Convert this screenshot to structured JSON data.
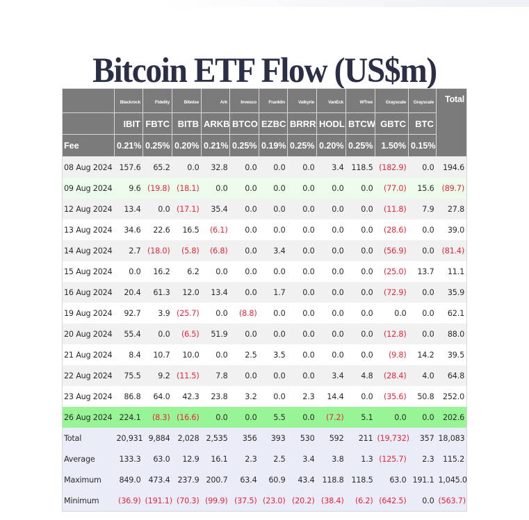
{
  "page": {
    "title": "Bitcoin ETF Flow (US$m)"
  },
  "colors": {
    "header_bg": "#7b7b7b",
    "negative_text": "#e8233a",
    "highlight_row": "#98f596",
    "light_green_row": "#ecfbec",
    "summary_row_bg": "#eaedf7"
  },
  "table": {
    "total_header": "Total",
    "fee_label": "Fee",
    "issuers": [
      "Blackrock",
      "Fidelity",
      "Bitwise",
      "Ark",
      "Invesco",
      "Franklin",
      "Valkyrie",
      "VanEck",
      "WTree",
      "Grayscale",
      "Grayscale"
    ],
    "tickers": [
      "IBIT",
      "FBTC",
      "BITB",
      "ARKB",
      "BTCO",
      "EZBC",
      "BRRR",
      "HODL",
      "BTCW",
      "GBTC",
      "BTC"
    ],
    "fees": [
      "0.21%",
      "0.25%",
      "0.20%",
      "0.21%",
      "0.25%",
      "0.19%",
      "0.25%",
      "0.20%",
      "0.25%",
      "1.50%",
      "0.15%"
    ],
    "rows": [
      {
        "date": "08 Aug 2024",
        "style": "grey",
        "values": [
          "157.6",
          "65.2",
          "0.0",
          "32.8",
          "0.0",
          "0.0",
          "0.0",
          "3.4",
          "118.5",
          "(182.9)",
          "0.0",
          "194.6"
        ]
      },
      {
        "date": "09 Aug 2024",
        "style": "lightgreen",
        "values": [
          "9.6",
          "(19.8)",
          "(18.1)",
          "0.0",
          "0.0",
          "0.0",
          "0.0",
          "0.0",
          "0.0",
          "(77.0)",
          "15.6",
          "(89.7)"
        ]
      },
      {
        "date": "12 Aug 2024",
        "style": "grey",
        "values": [
          "13.4",
          "0.0",
          "(17.1)",
          "35.4",
          "0.0",
          "0.0",
          "0.0",
          "0.0",
          "0.0",
          "(11.8)",
          "7.9",
          "27.8"
        ]
      },
      {
        "date": "13 Aug 2024",
        "style": "white",
        "values": [
          "34.6",
          "22.6",
          "16.5",
          "(6.1)",
          "0.0",
          "0.0",
          "0.0",
          "0.0",
          "0.0",
          "(28.6)",
          "0.0",
          "39.0"
        ]
      },
      {
        "date": "14 Aug 2024",
        "style": "grey",
        "values": [
          "2.7",
          "(18.0)",
          "(5.8)",
          "(6.8)",
          "0.0",
          "3.4",
          "0.0",
          "0.0",
          "0.0",
          "(56.9)",
          "0.0",
          "(81.4)"
        ]
      },
      {
        "date": "15 Aug 2024",
        "style": "white",
        "values": [
          "0.0",
          "16.2",
          "6.2",
          "0.0",
          "0.0",
          "0.0",
          "0.0",
          "0.0",
          "0.0",
          "(25.0)",
          "13.7",
          "11.1"
        ]
      },
      {
        "date": "16 Aug 2024",
        "style": "grey",
        "values": [
          "20.4",
          "61.3",
          "12.0",
          "13.4",
          "0.0",
          "1.7",
          "0.0",
          "0.0",
          "0.0",
          "(72.9)",
          "0.0",
          "35.9"
        ]
      },
      {
        "date": "19 Aug 2024",
        "style": "white",
        "values": [
          "92.7",
          "3.9",
          "(25.7)",
          "0.0",
          "(8.8)",
          "0.0",
          "0.0",
          "0.0",
          "0.0",
          "0.0",
          "0.0",
          "62.1"
        ]
      },
      {
        "date": "20 Aug 2024",
        "style": "grey",
        "values": [
          "55.4",
          "0.0",
          "(6.5)",
          "51.9",
          "0.0",
          "0.0",
          "0.0",
          "0.0",
          "0.0",
          "(12.8)",
          "0.0",
          "88.0"
        ]
      },
      {
        "date": "21 Aug 2024",
        "style": "white",
        "values": [
          "8.4",
          "10.7",
          "10.0",
          "0.0",
          "2.5",
          "3.5",
          "0.0",
          "0.0",
          "0.0",
          "(9.8)",
          "14.2",
          "39.5"
        ]
      },
      {
        "date": "22 Aug 2024",
        "style": "grey",
        "values": [
          "75.5",
          "9.2",
          "(11.5)",
          "7.8",
          "0.0",
          "0.0",
          "0.0",
          "3.4",
          "4.8",
          "(28.4)",
          "4.0",
          "64.8"
        ]
      },
      {
        "date": "23 Aug 2024",
        "style": "white",
        "values": [
          "86.8",
          "64.0",
          "42.3",
          "23.8",
          "3.2",
          "0.0",
          "2.3",
          "14.4",
          "0.0",
          "(35.6)",
          "50.8",
          "252.0"
        ]
      },
      {
        "date": "26 Aug 2024",
        "style": "green",
        "values": [
          "224.1",
          "(8.3)",
          "(16.6)",
          "0.0",
          "0.0",
          "5.5",
          "0.0",
          "(7.2)",
          "5.1",
          "0.0",
          "0.0",
          "202.6"
        ]
      }
    ],
    "summary": [
      {
        "label": "Total",
        "values": [
          "20,931",
          "9,884",
          "2,028",
          "2,535",
          "356",
          "393",
          "530",
          "592",
          "211",
          "(19,732)",
          "357",
          "18,083"
        ]
      },
      {
        "label": "Average",
        "values": [
          "133.3",
          "63.0",
          "12.9",
          "16.1",
          "2.3",
          "2.5",
          "3.4",
          "3.8",
          "1.3",
          "(125.7)",
          "2.3",
          "115.2"
        ]
      },
      {
        "label": "Maximum",
        "values": [
          "849.0",
          "473.4",
          "237.9",
          "200.7",
          "63.4",
          "60.9",
          "43.4",
          "118.8",
          "118.5",
          "63.0",
          "191.1",
          "1,045.0"
        ]
      },
      {
        "label": "Minimum",
        "values": [
          "(36.9)",
          "(191.1)",
          "(70.3)",
          "(99.9)",
          "(37.5)",
          "(23.0)",
          "(20.2)",
          "(38.4)",
          "(6.2)",
          "(642.5)",
          "0.0",
          "(563.7)"
        ]
      }
    ]
  }
}
